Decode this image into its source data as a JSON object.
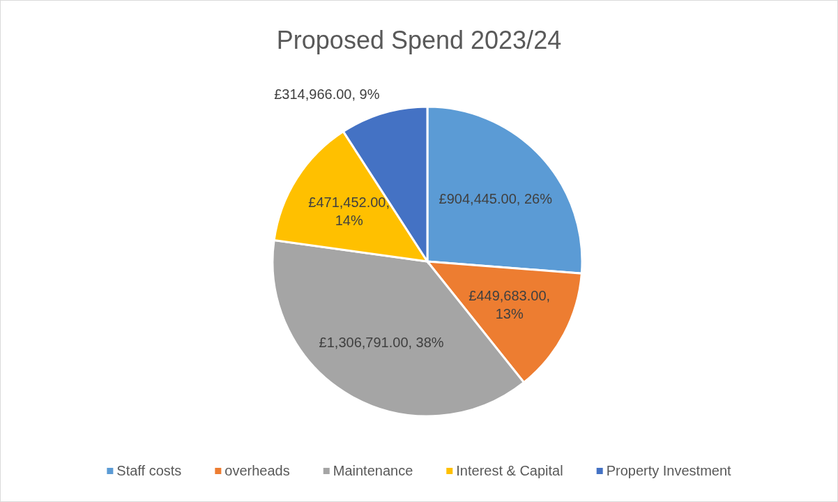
{
  "chart_data": {
    "type": "pie",
    "title": "Proposed Spend 2023/24",
    "categories": [
      "Staff costs",
      "overheads",
      "Maintenance",
      "Interest & Capital",
      "Property Investment"
    ],
    "values": [
      904445,
      449683,
      1306791,
      471452,
      314966
    ],
    "colors": [
      "#5b9bd5",
      "#ed7d31",
      "#a5a5a5",
      "#ffc000",
      "#4472c4"
    ],
    "value_labels": [
      "£904,445.00, 26%",
      "£449,683.00, 13%",
      "£1,306,791.00, 38%",
      "£471,452.00, 14%",
      "£314,966.00, 9%"
    ],
    "legend": "bottom"
  }
}
